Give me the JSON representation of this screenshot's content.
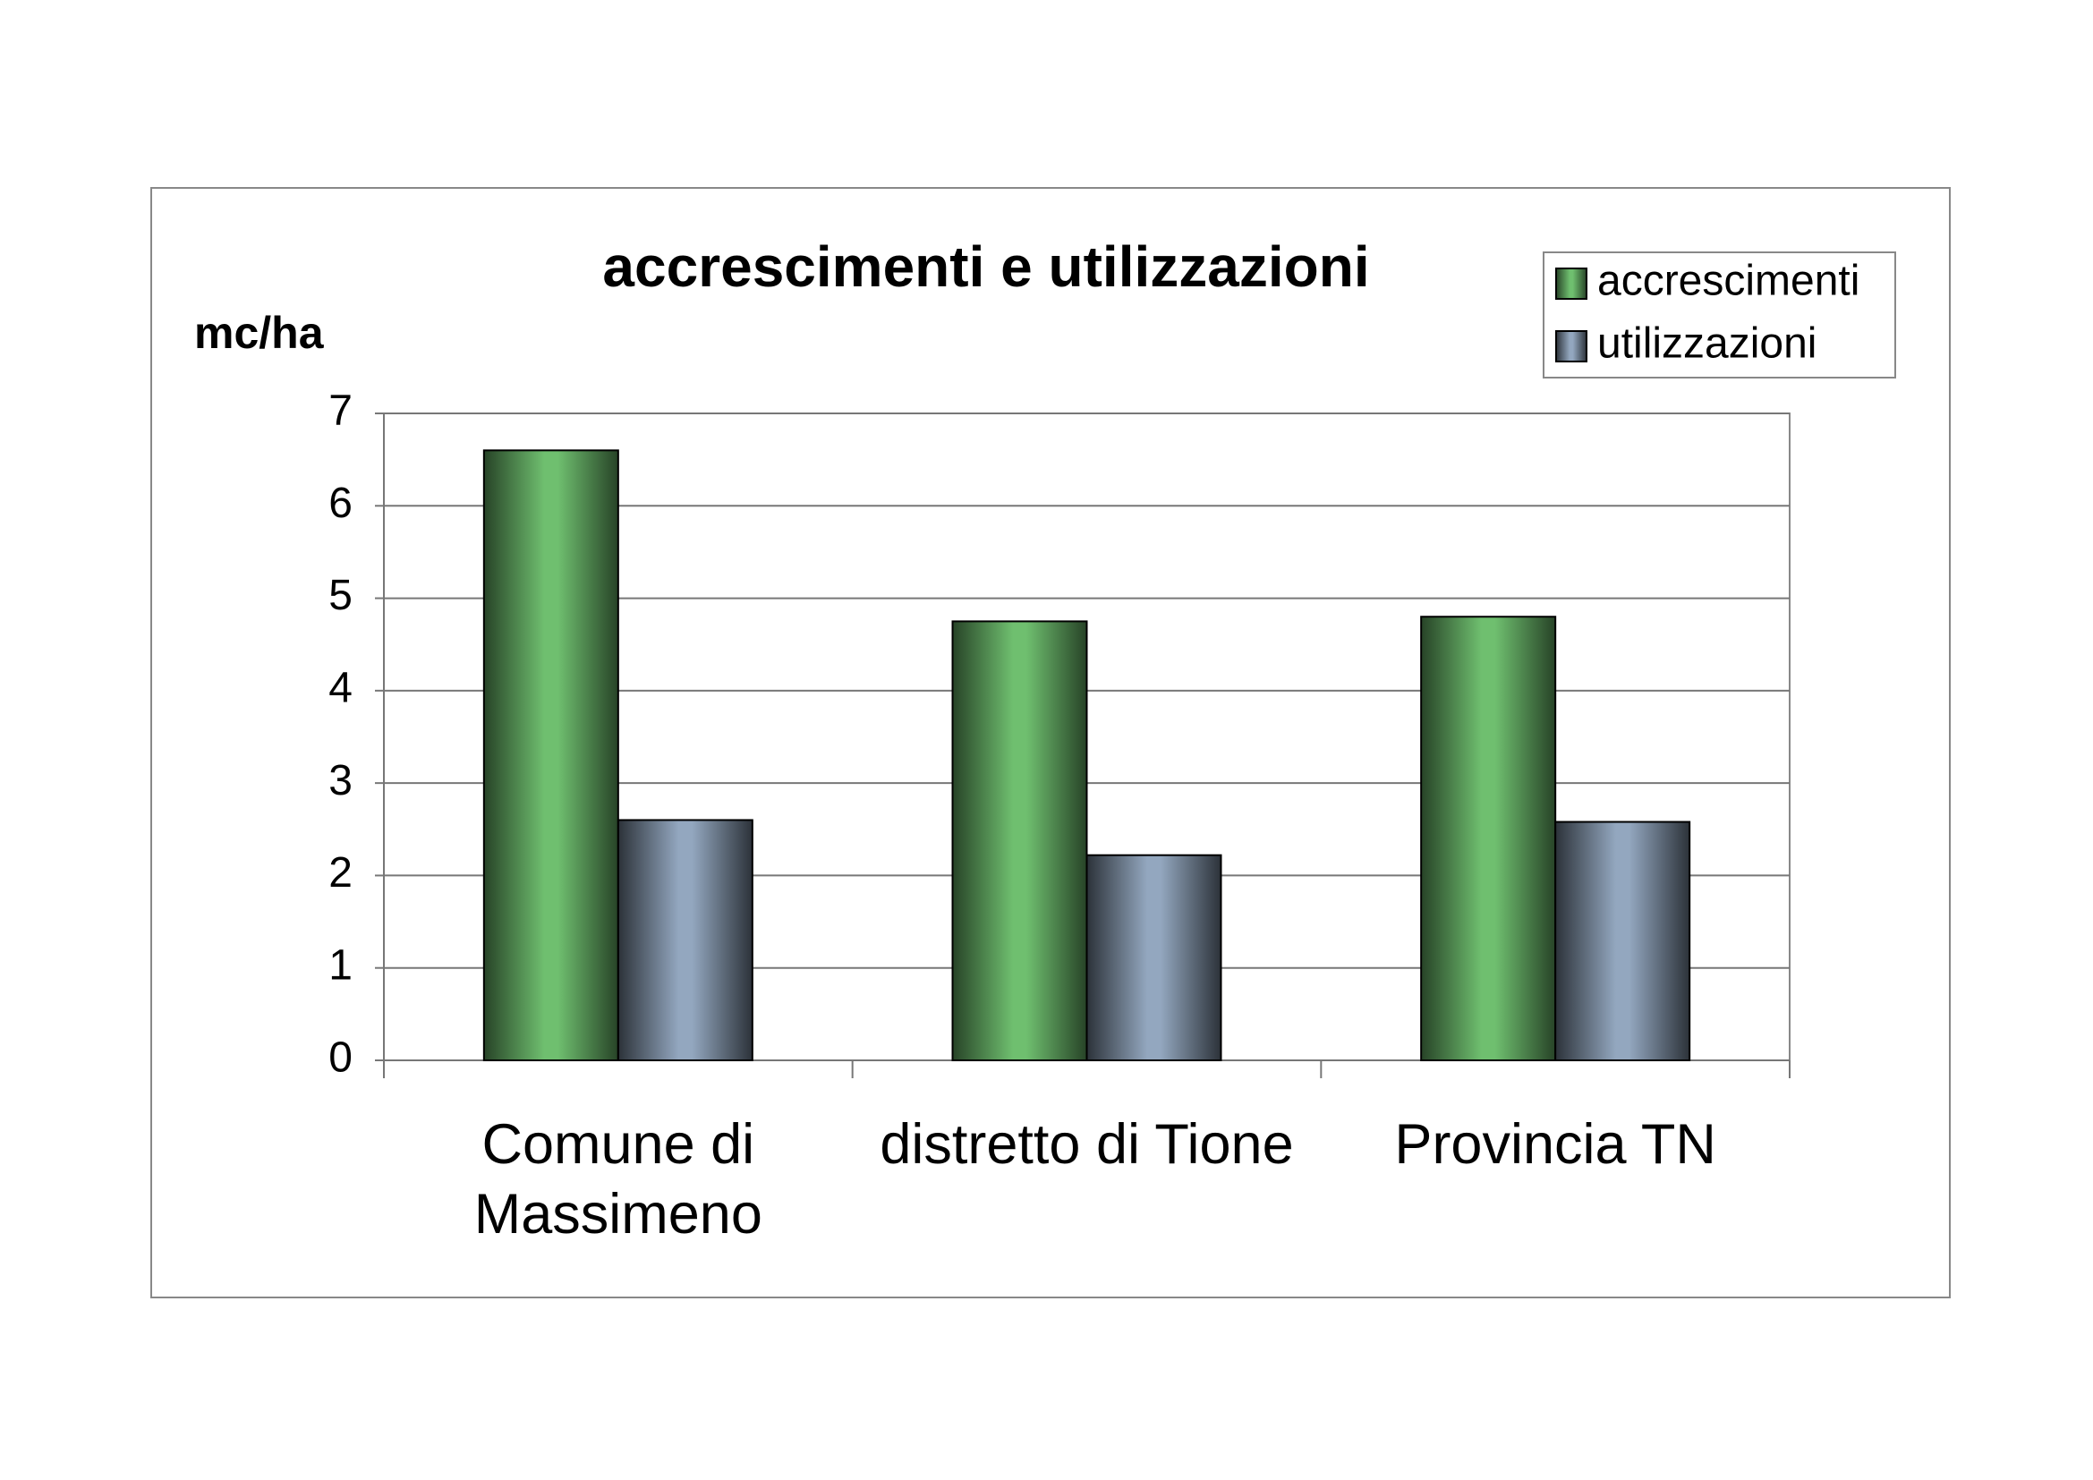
{
  "chart_data": {
    "type": "bar",
    "title": "accrescimenti e utilizzazioni",
    "y_label": "mc/ha",
    "categories": [
      "Comune di Massimeno",
      "distretto di Tione",
      "Provincia TN"
    ],
    "series": [
      {
        "name": "accrescimenti",
        "color": "#6fbf6f",
        "values": [
          6.6,
          4.75,
          4.8
        ]
      },
      {
        "name": "utilizzazioni",
        "color": "#93a7bf",
        "values": [
          2.6,
          2.22,
          2.58
        ]
      }
    ],
    "ylim": [
      0,
      7
    ],
    "yticks": [
      0,
      1,
      2,
      3,
      4,
      5,
      6,
      7
    ],
    "grid": true,
    "legend": "top-right"
  }
}
